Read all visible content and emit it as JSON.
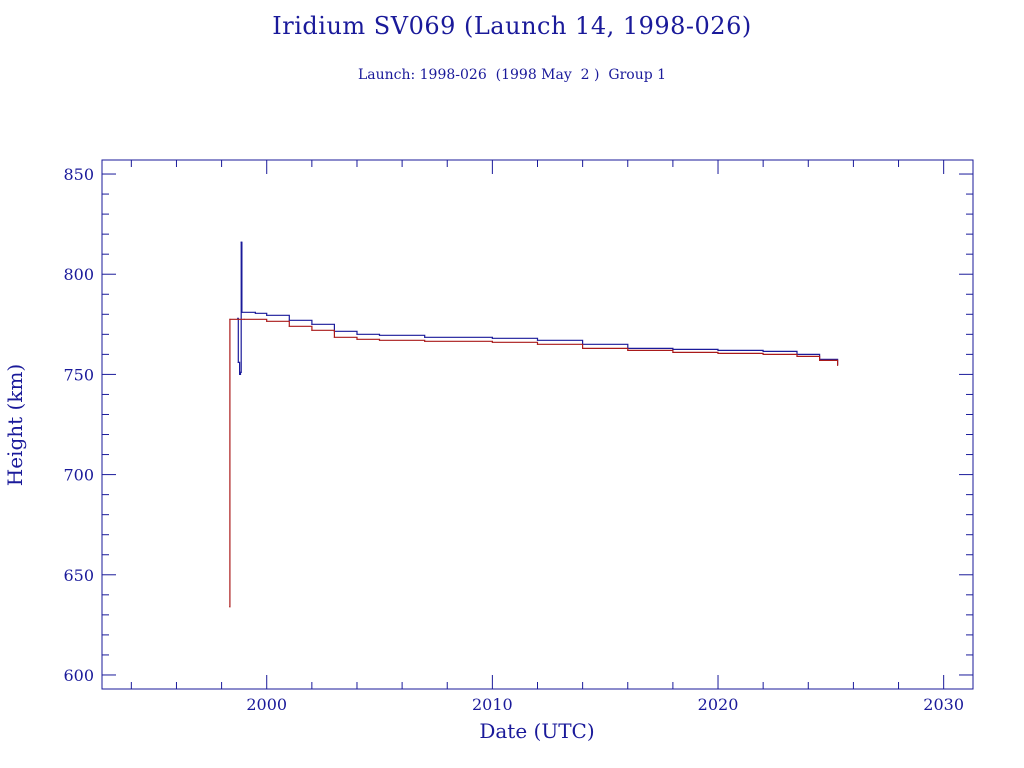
{
  "chart_data": {
    "type": "line",
    "title": "Iridium SV069 (Launch 14, 1998-026)",
    "subtitle": "Launch: 1998-026  (1998 May  2 )  Group 1",
    "xlabel": "Date (UTC)",
    "ylabel": "Height (km)",
    "xlim": [
      1992.7,
      2031.3
    ],
    "ylim": [
      593,
      857
    ],
    "xticks": [
      2000,
      2010,
      2020,
      2030
    ],
    "xtick_labels": [
      "2000",
      "2010",
      "2020",
      "2030"
    ],
    "yticks": [
      600,
      650,
      700,
      750,
      800,
      850
    ],
    "ytick_labels": [
      "600",
      "650",
      "700",
      "750",
      "800",
      "850"
    ],
    "grid": false,
    "series": [
      {
        "color": "#1a1a9a",
        "points": [
          [
            1998.71,
            778
          ],
          [
            1998.74,
            756
          ],
          [
            1998.8,
            750
          ],
          [
            1998.84,
            751
          ],
          [
            1998.87,
            816
          ],
          [
            1998.9,
            781
          ],
          [
            1999.5,
            780.5
          ],
          [
            2000.0,
            779.5
          ],
          [
            2001.0,
            777
          ],
          [
            2002.0,
            775
          ],
          [
            2003.0,
            771.5
          ],
          [
            2004.0,
            770
          ],
          [
            2005.0,
            769.5
          ],
          [
            2007.0,
            768.5
          ],
          [
            2010.0,
            768
          ],
          [
            2012.0,
            767
          ],
          [
            2014.0,
            765
          ],
          [
            2016.0,
            763
          ],
          [
            2018.0,
            762.5
          ],
          [
            2020.0,
            762
          ],
          [
            2022.0,
            761.5
          ],
          [
            2023.5,
            760
          ],
          [
            2024.5,
            757.5
          ],
          [
            2025.3,
            755
          ]
        ]
      },
      {
        "color": "#aa1a1a",
        "points": [
          [
            1998.36,
            634
          ],
          [
            1998.37,
            777.5
          ],
          [
            1999.0,
            777.5
          ],
          [
            2000.0,
            776.5
          ],
          [
            2001.0,
            774
          ],
          [
            2002.0,
            772
          ],
          [
            2003.0,
            768.5
          ],
          [
            2004.0,
            767.5
          ],
          [
            2005.0,
            767
          ],
          [
            2007.0,
            766.5
          ],
          [
            2010.0,
            766
          ],
          [
            2012.0,
            765
          ],
          [
            2014.0,
            763
          ],
          [
            2016.0,
            762
          ],
          [
            2018.0,
            761
          ],
          [
            2020.0,
            760.5
          ],
          [
            2022.0,
            760
          ],
          [
            2023.5,
            759
          ],
          [
            2024.5,
            757
          ],
          [
            2025.3,
            754.5
          ]
        ]
      }
    ]
  }
}
